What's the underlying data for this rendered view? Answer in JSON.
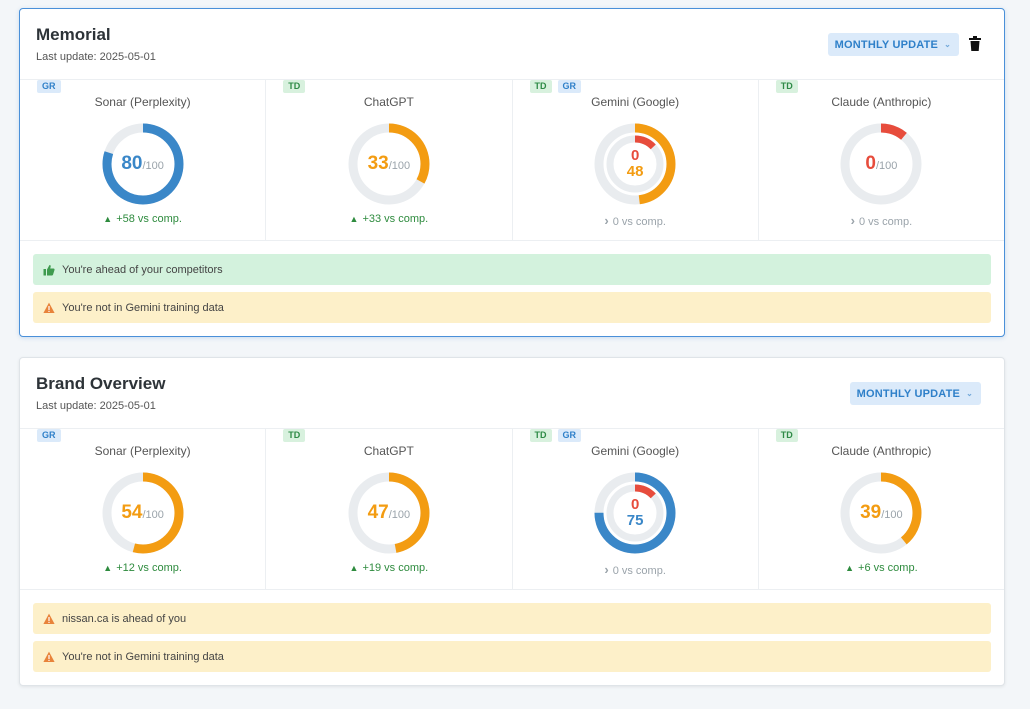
{
  "colors": {
    "blue": "#3a87c8",
    "orange": "#f39c12",
    "red": "#e74c3c",
    "track": "#e9ecef",
    "green_text": "#2e8b3e"
  },
  "cards": [
    {
      "title": "Memorial",
      "last_update": "Last update: 2025-05-01",
      "update_button": "MONTHLY UPDATE",
      "has_delete": true,
      "metrics": [
        {
          "badges": [
            "GR"
          ],
          "name": "Sonar (Perplexity)",
          "score": "80",
          "max": "/100",
          "value": 80,
          "color": "blue",
          "cmp": "+58 vs comp.",
          "trend": "up"
        },
        {
          "badges": [
            "TD"
          ],
          "name": "ChatGPT",
          "score": "33",
          "max": "/100",
          "value": 33,
          "color": "orange",
          "cmp": "+33 vs comp.",
          "trend": "up"
        },
        {
          "badges": [
            "TD",
            "GR"
          ],
          "name": "Gemini (Google)",
          "dual": true,
          "outer_score": "48",
          "outer_value": 48,
          "outer_color": "orange",
          "inner_score": "0",
          "inner_value": 0,
          "inner_color": "red",
          "cmp": "0 vs comp.",
          "trend": "flat"
        },
        {
          "badges": [
            "TD"
          ],
          "name": "Claude (Anthropic)",
          "score": "0",
          "max": "/100",
          "value": 0,
          "color": "red",
          "cmp": "0 vs comp.",
          "trend": "flat"
        }
      ],
      "alerts": [
        {
          "type": "success",
          "icon": "thumbs-up-icon",
          "text": "You're ahead of your competitors"
        },
        {
          "type": "warning",
          "icon": "warning-icon",
          "text": "You're not in Gemini training data"
        }
      ]
    },
    {
      "title": "Brand Overview",
      "last_update": "Last update: 2025-05-01",
      "update_button": "MONTHLY UPDATE",
      "has_delete": false,
      "metrics": [
        {
          "badges": [
            "GR"
          ],
          "name": "Sonar (Perplexity)",
          "score": "54",
          "max": "/100",
          "value": 54,
          "color": "orange",
          "cmp": "+12 vs comp.",
          "trend": "up"
        },
        {
          "badges": [
            "TD"
          ],
          "name": "ChatGPT",
          "score": "47",
          "max": "/100",
          "value": 47,
          "color": "orange",
          "cmp": "+19 vs comp.",
          "trend": "up"
        },
        {
          "badges": [
            "TD",
            "GR"
          ],
          "name": "Gemini (Google)",
          "dual": true,
          "outer_score": "75",
          "outer_value": 75,
          "outer_color": "blue",
          "inner_score": "0",
          "inner_value": 0,
          "inner_color": "red",
          "cmp": "0 vs comp.",
          "trend": "flat"
        },
        {
          "badges": [
            "TD"
          ],
          "name": "Claude (Anthropic)",
          "score": "39",
          "max": "/100",
          "value": 39,
          "color": "orange",
          "cmp": "+6 vs comp.",
          "trend": "up"
        }
      ],
      "alerts": [
        {
          "type": "warning",
          "icon": "warning-icon",
          "text": "nissan.ca is ahead of you"
        },
        {
          "type": "warning",
          "icon": "warning-icon",
          "text": "You're not in Gemini training data"
        }
      ]
    }
  ]
}
